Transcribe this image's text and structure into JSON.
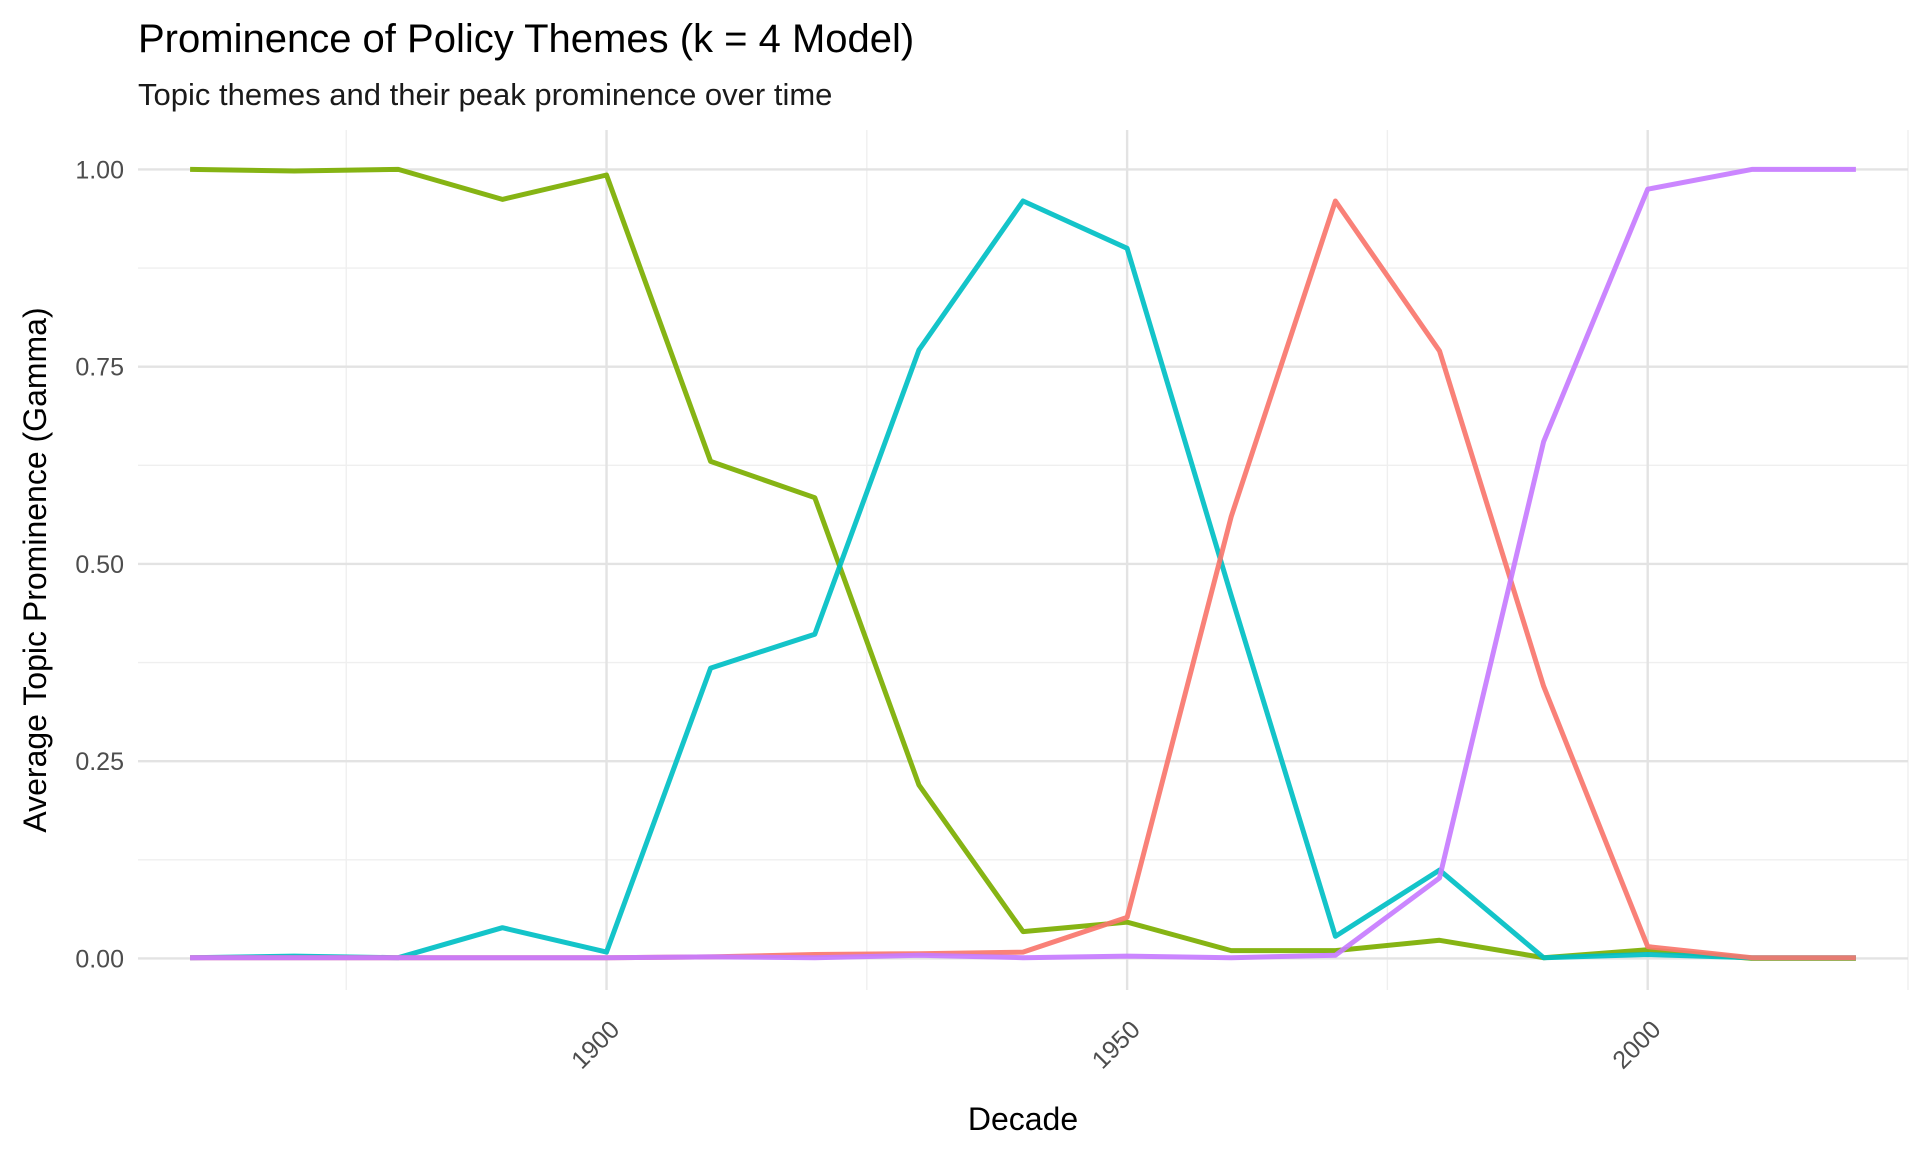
{
  "chart_data": {
    "type": "line",
    "title": "Prominence of Policy Themes (k = 4 Model)",
    "subtitle": "Topic themes and their peak prominence over time",
    "xlabel": "Decade",
    "ylabel": "Average Topic Prominence (Gamma)",
    "x": [
      1860,
      1870,
      1880,
      1890,
      1900,
      1910,
      1920,
      1930,
      1940,
      1950,
      1960,
      1970,
      1980,
      1990,
      2000,
      2010,
      2020
    ],
    "xlim": [
      1855,
      2025
    ],
    "ylim": [
      -0.04,
      1.05
    ],
    "x_ticks": [
      1900,
      1950,
      2000
    ],
    "x_tick_labels": [
      "1900",
      "1950",
      "2000"
    ],
    "x_minor_ticks": [
      1875,
      1925,
      1975,
      2025
    ],
    "y_ticks": [
      0,
      0.25,
      0.5,
      0.75,
      1.0
    ],
    "y_tick_labels": [
      "0.00",
      "0.25",
      "0.50",
      "0.75",
      "1.00"
    ],
    "y_minor_ticks": [
      0.125,
      0.375,
      0.625,
      0.875
    ],
    "grid": true,
    "legend": "none",
    "series": [
      {
        "color": "#7CAE00",
        "values": [
          1.0,
          0.998,
          1.0,
          0.962,
          0.993,
          0.63,
          0.584,
          0.22,
          0.034,
          0.046,
          0.01,
          0.01,
          0.023,
          0.001,
          0.011,
          0.0,
          0.0
        ]
      },
      {
        "color": "#00BFC4",
        "values": [
          0.001,
          0.003,
          0.001,
          0.039,
          0.008,
          0.368,
          0.411,
          0.771,
          0.96,
          0.9,
          0.46,
          0.028,
          0.112,
          0.001,
          0.005,
          0.001,
          0.001
        ]
      },
      {
        "color": "#F8766D",
        "values": [
          0.001,
          0.001,
          0.001,
          0.001,
          0.001,
          0.002,
          0.005,
          0.006,
          0.008,
          0.052,
          0.56,
          0.96,
          0.77,
          0.345,
          0.015,
          0.001,
          0.001
        ]
      },
      {
        "color": "#C77CFF",
        "values": [
          0.001,
          0.001,
          0.001,
          0.001,
          0.001,
          0.002,
          0.001,
          0.004,
          0.001,
          0.003,
          0.001,
          0.004,
          0.102,
          0.655,
          0.975,
          1.0,
          1.0
        ]
      }
    ]
  }
}
